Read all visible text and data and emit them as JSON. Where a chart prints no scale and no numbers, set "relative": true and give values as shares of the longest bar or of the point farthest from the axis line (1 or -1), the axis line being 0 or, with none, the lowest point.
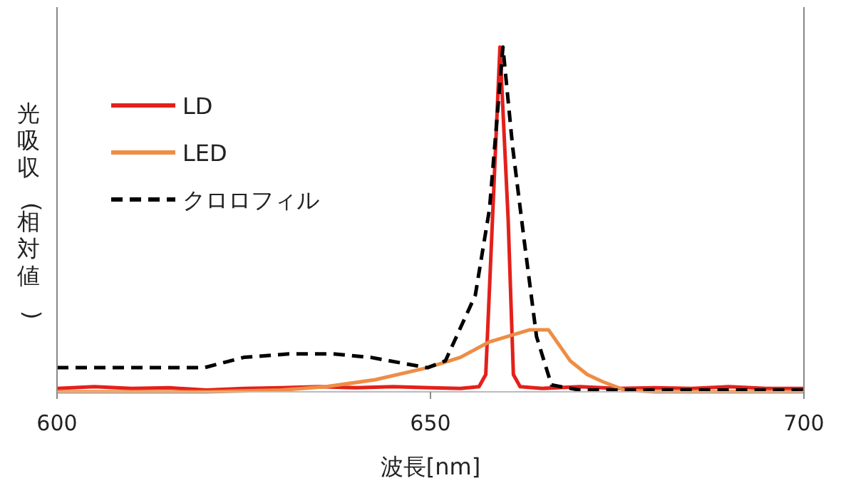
{
  "chart_data": {
    "type": "line",
    "relative": true,
    "xlabel": "波長[nm]",
    "ylabel": "光吸収(相対値)",
    "xlim": [
      600,
      700
    ],
    "xticks": [
      600,
      650,
      700
    ],
    "legend": "top left",
    "series": [
      {
        "name": "LD",
        "color": "#e3201b",
        "line_style": "solid",
        "x": [
          600,
          605,
          610,
          615,
          620,
          625,
          630,
          635,
          640,
          645,
          650,
          654,
          656.5,
          657.4,
          658.3,
          659.3,
          660.4,
          661.1,
          662,
          665,
          670,
          675,
          680,
          685,
          690,
          695,
          700
        ],
        "values": [
          0.01,
          0.015,
          0.01,
          0.012,
          0.005,
          0.01,
          0.012,
          0.015,
          0.012,
          0.015,
          0.012,
          0.01,
          0.015,
          0.05,
          0.5,
          1.0,
          0.5,
          0.05,
          0.015,
          0.01,
          0.015,
          0.01,
          0.012,
          0.01,
          0.015,
          0.01,
          0.01
        ]
      },
      {
        "name": "LED",
        "color": "#ee8d45",
        "line_style": "solid",
        "x": [
          600,
          610,
          620,
          630,
          636,
          642.6,
          649.6,
          654,
          657.9,
          661,
          663.3,
          665.8,
          668.7,
          671,
          673,
          676,
          680,
          690,
          700
        ],
        "values": [
          0.0,
          0.0,
          0.0,
          0.005,
          0.015,
          0.035,
          0.07,
          0.1,
          0.145,
          0.165,
          0.18,
          0.18,
          0.09,
          0.05,
          0.03,
          0.005,
          0.0,
          0.0,
          0.0
        ]
      },
      {
        "name": "クロロフィル",
        "color": "#000000",
        "line_style": "dashed",
        "x": [
          600,
          610,
          619.7,
          625,
          631,
          637,
          642,
          647,
          649.6,
          652,
          656,
          657.9,
          659.7,
          661,
          662.6,
          664.2,
          666.2,
          670,
          680,
          690,
          700
        ],
        "values": [
          0.07,
          0.07,
          0.07,
          0.1,
          0.11,
          0.11,
          0.1,
          0.08,
          0.07,
          0.09,
          0.28,
          0.53,
          1.0,
          0.71,
          0.43,
          0.16,
          0.02,
          0.005,
          0.005,
          0.005,
          0.005
        ]
      }
    ]
  }
}
